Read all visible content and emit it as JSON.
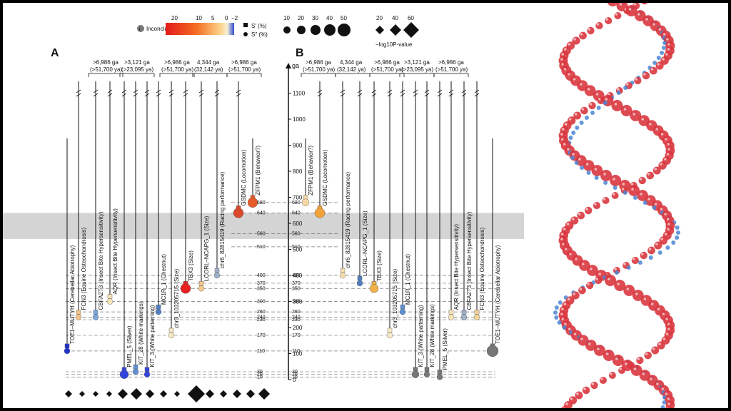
{
  "figure": {
    "panel_a": "A",
    "panel_b": "B",
    "axis_unit": "ga",
    "axis_ticks": [
      0,
      100,
      200,
      300,
      400,
      500,
      600,
      700,
      800,
      900,
      1000,
      1100
    ],
    "highlight_band_ga": [
      540,
      640
    ],
    "legend": {
      "inconclusive": "Inconclusive",
      "color_ticks": [
        "20",
        "10",
        "5",
        "0",
        "−2"
      ],
      "s_square": "S′ (%)",
      "s_circle": "S″ (%)",
      "size_ticks": [
        "10",
        "20",
        "30",
        "40",
        "50"
      ],
      "p_ticks": [
        "20",
        "40",
        "60"
      ],
      "p_label": "−log10P-value"
    },
    "brackets_a": [
      {
        "ga": ">6,986 ga",
        "ya": "(>51,700 ya)"
      },
      {
        "ga": ">3,121 ga",
        "ya": "(>23,095 ya)"
      },
      {
        "ga": ">6,986 ga",
        "ya": "(>51,700 ya)"
      },
      {
        "ga": "4,344 ga",
        "ya": "(32,142 ya)"
      },
      {
        "ga": ">6,986 ga",
        "ya": "(>51,700 ya)"
      }
    ],
    "brackets_b": [
      {
        "ga": ">6,986 ga",
        "ya": "(>51,700 ya)"
      },
      {
        "ga": "4,344 ga",
        "ya": "(32,142 ya)"
      },
      {
        "ga": ">6,986 ga",
        "ya": "(>51,700 ya)"
      },
      {
        "ga": ">3,121 ga",
        "ya": "(>23,095 ya)"
      },
      {
        "ga": ">6,986 ga",
        "ya": "(>51,700 ya)"
      }
    ],
    "loci_a": [
      "TOE1–MUTYH (Cerebellar Abiotrophy)",
      "FCN3 (Equine Osteochondrosis)",
      "CBFA2T3 (Insect Bite Hypersensitivity)",
      "AQR (Insect Bite Hypersensitivity)",
      "PMEL_5 (Silver)",
      "KIT_28 (White markings)",
      "KIT_3 (White patterning)",
      "MC1R_1 (Chestnut)",
      "chr3_103205715 (Size)",
      "TBX3 (Size)",
      "LCORL–NCAPG_1 (Size)",
      "chr6_82815419 (Racing performance)",
      "GSDMC (Locomotion)",
      "ZFPM1 (Behavior?)"
    ],
    "loci_b": [
      "ZFPM1 (Behavior?)",
      "GSDMC (Locomotion)",
      "chr6_82815419 (Racing performance)",
      "LCORL–NCAPG_1 (Size)",
      "TBX3 (Size)",
      "chr3_103205715 (Size)",
      "MC1R_1 (Chestnut)",
      "KIT_3 (White patterning)",
      "KIT_28 (White markings)",
      "PMEL_5 (Silver)",
      "AQR (Insect Bite Hypersensitivity)",
      "CBFA2T3 (Insect Bite Hypersensitivity)",
      "FCN3 (Equine Osteochondrosis)",
      "TOE1–MUTYH (Cerebellar Abiotrophy)"
    ],
    "ref_values": [
      {
        "ga": 680,
        "label": "680"
      },
      {
        "ga": 640,
        "label": "640"
      },
      {
        "ga": 560,
        "label": "560"
      },
      {
        "ga": 510,
        "label": "510"
      },
      {
        "ga": 400,
        "label": "400"
      },
      {
        "ga": 370,
        "label": "370"
      },
      {
        "ga": 350,
        "label": "350"
      },
      {
        "ga": 300,
        "label": "300"
      },
      {
        "ga": 260,
        "label": "260"
      },
      {
        "ga": 240,
        "label": "240"
      },
      {
        "ga": 230,
        "label": "230"
      },
      {
        "ga": 170,
        "label": "170"
      },
      {
        "ga": 110,
        "label": "110"
      },
      {
        "ga": 30,
        "label": "30"
      },
      {
        "ga": 20,
        "label": "20"
      },
      {
        "ga": 10,
        "label": "10"
      }
    ],
    "loci_points_a": [
      {
        "ga": 110,
        "color": "#2233cc",
        "r": 4
      },
      {
        "ga": 240,
        "color": "#f1c48c",
        "r": 4
      },
      {
        "ga": 240,
        "color": "#7aa7d8",
        "r": 4
      },
      {
        "ga": 300,
        "color": "#f7e4b8",
        "r": 4
      },
      {
        "ga": 20,
        "color": "#3344dd",
        "r": 6
      },
      {
        "ga": 30,
        "color": "#5f8fd0",
        "r": 4
      },
      {
        "ga": 20,
        "color": "#3344dd",
        "r": 4
      },
      {
        "ga": 260,
        "color": "#4f7fbf",
        "r": 4
      },
      {
        "ga": 170,
        "color": "#f5e6c4",
        "r": 4
      },
      {
        "ga": 350,
        "color": "#e82020",
        "r": 7
      },
      {
        "ga": 350,
        "color": "#f4c88e",
        "r": 4
      },
      {
        "ga": 400,
        "color": "#9fb0c8",
        "r": 4
      },
      {
        "ga": 640,
        "color": "#d94a2c",
        "r": 7
      },
      {
        "ga": 680,
        "color": "#e65b2b",
        "r": 7
      }
    ],
    "loci_points_b": [
      {
        "ga": 680,
        "color": "#f6d8a8",
        "r": 5
      },
      {
        "ga": 640,
        "color": "#f2a33a",
        "r": 7
      },
      {
        "ga": 400,
        "color": "#f4deb0",
        "r": 4
      },
      {
        "ga": 370,
        "color": "#4f7fbf",
        "r": 4
      },
      {
        "ga": 350,
        "color": "#f0b14a",
        "r": 6
      },
      {
        "ga": 170,
        "color": "#f8e9c8",
        "r": 4
      },
      {
        "ga": 260,
        "color": "#5f8fd0",
        "r": 4
      },
      {
        "ga": 20,
        "color": "#777777",
        "r": 5
      },
      {
        "ga": 20,
        "color": "#777777",
        "r": 4
      },
      {
        "ga": 10,
        "color": "#777777",
        "r": 4
      },
      {
        "ga": 240,
        "color": "#f7e4b8",
        "r": 4
      },
      {
        "ga": 240,
        "color": "#9fb0c8",
        "r": 4
      },
      {
        "ga": 240,
        "color": "#f2d49a",
        "r": 4
      },
      {
        "ga": 110,
        "color": "#777777",
        "r": 8
      }
    ],
    "pvalue_diamonds": [
      5,
      4,
      4,
      4,
      7,
      8,
      6,
      5,
      4,
      12,
      6,
      5,
      6,
      6,
      8
    ]
  },
  "colors": {
    "dna_red": "#d9363e",
    "dna_blue": "#4b86d3",
    "axis": "#111111",
    "band": "#d4d4d4"
  }
}
